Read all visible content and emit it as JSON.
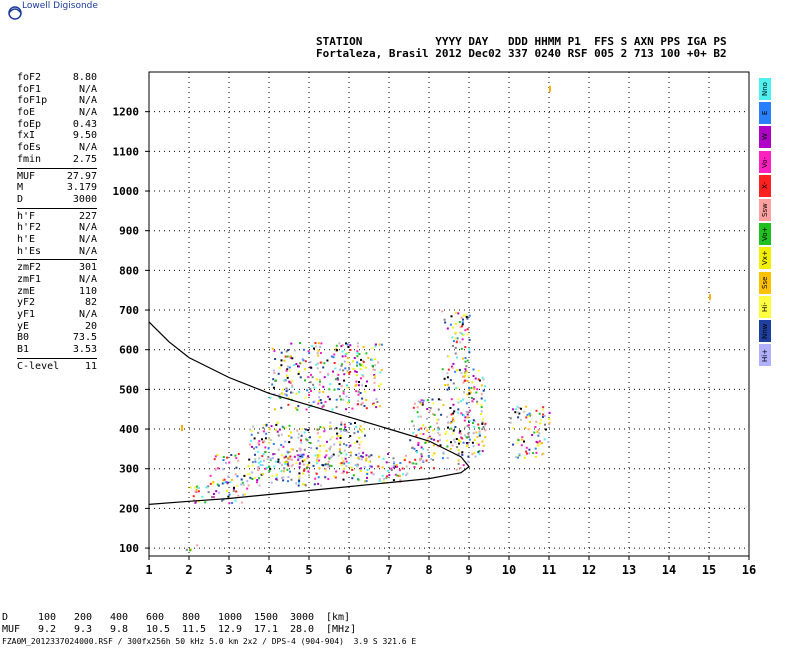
{
  "brand": "Lowell Digisonde",
  "header": {
    "line1": "STATION           YYYY DAY   DDD HHMM P1  FFS S AXN PPS IGA PS",
    "line2": "Fortaleza, Brasil 2012 Dec02 337 0240 RSF 005 2 713 100 +0+ B2"
  },
  "params_groups": [
    [
      {
        "k": "foF2",
        "v": "8.80"
      },
      {
        "k": "foF1",
        "v": "N/A"
      },
      {
        "k": "foF1p",
        "v": "N/A"
      },
      {
        "k": "foE",
        "v": "N/A"
      },
      {
        "k": "foEp",
        "v": "0.43"
      },
      {
        "k": "fxI",
        "v": "9.50"
      },
      {
        "k": "foEs",
        "v": "N/A"
      },
      {
        "k": "fmin",
        "v": "2.75"
      }
    ],
    [
      {
        "k": "MUF",
        "v": "27.97"
      },
      {
        "k": "M",
        "v": "3.179"
      },
      {
        "k": "D",
        "v": "3000"
      }
    ],
    [
      {
        "k": "h'F",
        "v": "227"
      },
      {
        "k": "h'F2",
        "v": "N/A"
      },
      {
        "k": "h'E",
        "v": "N/A"
      },
      {
        "k": "h'Es",
        "v": "N/A"
      }
    ],
    [
      {
        "k": "zmF2",
        "v": "301"
      },
      {
        "k": "zmF1",
        "v": "N/A"
      },
      {
        "k": "zmE",
        "v": "110"
      },
      {
        "k": "yF2",
        "v": "82"
      },
      {
        "k": "yF1",
        "v": "N/A"
      },
      {
        "k": "yE",
        "v": "20"
      },
      {
        "k": "B0",
        "v": "73.5"
      },
      {
        "k": "B1",
        "v": "3.53"
      }
    ],
    [
      {
        "k": "C-level",
        "v": "11"
      }
    ]
  ],
  "legend": [
    {
      "label": "Nno",
      "color": "#4ff0f0"
    },
    {
      "label": "E",
      "color": "#2a7fff"
    },
    {
      "label": "W",
      "color": "#b000c8"
    },
    {
      "label": "Vo-",
      "color": "#ff20c0"
    },
    {
      "label": "X-",
      "color": "#ff2020"
    },
    {
      "label": "Ssw",
      "color": "#ffa0a0"
    },
    {
      "label": "Vo+",
      "color": "#20c020"
    },
    {
      "label": "Vx+",
      "color": "#f0f000"
    },
    {
      "label": "Sse",
      "color": "#ffc000"
    },
    {
      "label": "Hi-",
      "color": "#ffff40"
    },
    {
      "label": "Nnw",
      "color": "#2040a0"
    },
    {
      "label": "Hi+",
      "color": "#b0b0ff"
    }
  ],
  "muf_table": {
    "d_label": "D",
    "d_values": [
      "100",
      "200",
      "400",
      "600",
      "800",
      "1000",
      "1500",
      "3000"
    ],
    "d_unit": "[km]",
    "muf_label": "MUF",
    "muf_values": [
      "9.2",
      "9.3",
      "9.8",
      "10.5",
      "11.5",
      "12.9",
      "17.1",
      "28.0"
    ],
    "muf_unit": "[MHz]"
  },
  "footer": "FZA0M_2012337024000.RSF / 300fx256h 50 kHz 5.0 km 2x2 / DPS-4 (904-904)  3.9 S 321.6 E",
  "chart_data": {
    "type": "scatter",
    "xlim": [
      1,
      16
    ],
    "ylim": [
      80,
      1300
    ],
    "xticks": [
      "1",
      "2",
      "3",
      "4",
      "5",
      "6",
      "7",
      "8",
      "9",
      "10",
      "11",
      "12",
      "13",
      "14",
      "15",
      "16"
    ],
    "yticks": [
      "100",
      "200",
      "300",
      "400",
      "500",
      "600",
      "700",
      "800",
      "900",
      "1000",
      "1100",
      "1200"
    ],
    "grid": true,
    "profile_curve": [
      [
        1.0,
        670
      ],
      [
        1.5,
        620
      ],
      [
        2.0,
        580
      ],
      [
        3.0,
        530
      ],
      [
        4.0,
        490
      ],
      [
        5.0,
        460
      ],
      [
        6.0,
        430
      ],
      [
        7.0,
        400
      ],
      [
        8.0,
        370
      ],
      [
        8.8,
        330
      ],
      [
        9.0,
        305
      ],
      [
        8.8,
        290
      ],
      [
        8.0,
        275
      ],
      [
        7.0,
        265
      ],
      [
        6.0,
        255
      ],
      [
        5.0,
        245
      ],
      [
        4.0,
        235
      ],
      [
        3.0,
        225
      ],
      [
        2.0,
        218
      ],
      [
        1.0,
        210
      ]
    ],
    "echo_regions": [
      {
        "x": [
          2.0,
          3.5
        ],
        "y": [
          215,
          270
        ]
      },
      {
        "x": [
          2.5,
          5.5
        ],
        "y": [
          260,
          340
        ]
      },
      {
        "x": [
          3.5,
          6.5
        ],
        "y": [
          300,
          420
        ]
      },
      {
        "x": [
          4.0,
          6.8
        ],
        "y": [
          450,
          620
        ]
      },
      {
        "x": [
          5.5,
          7.5
        ],
        "y": [
          270,
          340
        ]
      },
      {
        "x": [
          7.5,
          9.0
        ],
        "y": [
          300,
          480
        ]
      },
      {
        "x": [
          8.8,
          9.4
        ],
        "y": [
          330,
          560
        ]
      },
      {
        "x": [
          10.0,
          11.0
        ],
        "y": [
          330,
          460
        ]
      },
      {
        "x": [
          8.3,
          9.0
        ],
        "y": [
          500,
          700
        ]
      },
      {
        "x": [
          1.8,
          2.2
        ],
        "y": [
          95,
          110
        ]
      }
    ],
    "isolated_points": [
      [
        15.0,
        740
      ],
      [
        11.0,
        1265
      ],
      [
        1.8,
        410
      ]
    ]
  }
}
